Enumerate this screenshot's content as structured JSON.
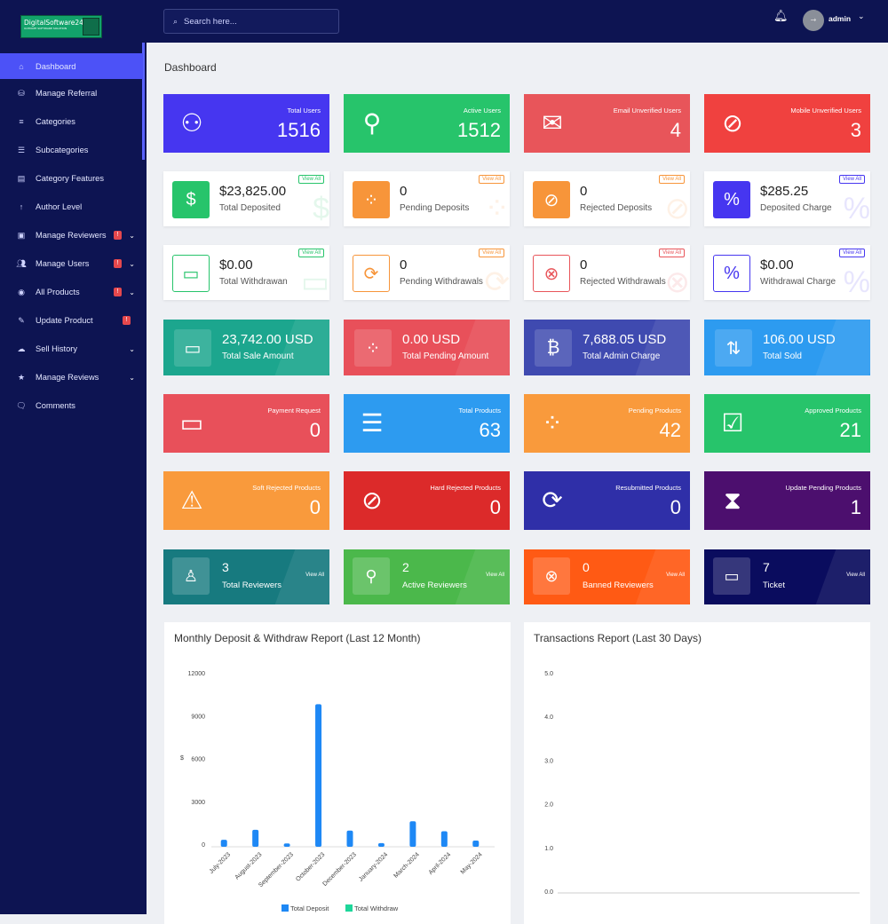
{
  "brand": {
    "name": "DigitalSoftware24",
    "tagline": "ULTIMATE SOFTWARE SOLUTION"
  },
  "search": {
    "placeholder": "Search here..."
  },
  "user": {
    "name": "admin"
  },
  "page_title": "Dashboard",
  "sidebar": {
    "items": [
      {
        "label": "Dashboard",
        "icon": "home-icon",
        "active": true
      },
      {
        "label": "Manage Referral",
        "icon": "referral-icon"
      },
      {
        "label": "Categories",
        "icon": "menu-icon"
      },
      {
        "label": "Subcategories",
        "icon": "list-icon"
      },
      {
        "label": "Category Features",
        "icon": "feature-icon"
      },
      {
        "label": "Author Level",
        "icon": "up-arrow-icon"
      },
      {
        "label": "Manage Reviewers",
        "icon": "briefcase-icon",
        "badge": "!",
        "dropdown": true
      },
      {
        "label": "Manage Users",
        "icon": "users-icon",
        "badge": "!",
        "dropdown": true
      },
      {
        "label": "All Products",
        "icon": "product-icon",
        "badge": "!",
        "dropdown": true
      },
      {
        "label": "Update Product",
        "icon": "edit-icon",
        "badge": "!"
      },
      {
        "label": "Sell History",
        "icon": "cloud-icon",
        "dropdown": true
      },
      {
        "label": "Manage Reviews",
        "icon": "star-icon",
        "dropdown": true
      },
      {
        "label": "Comments",
        "icon": "comments-icon"
      }
    ]
  },
  "row1": [
    {
      "label": "Total Users",
      "value": "1516",
      "icon": "users-group-icon",
      "color": "#4636f0"
    },
    {
      "label": "Active Users",
      "value": "1512",
      "icon": "user-check-icon",
      "color": "#27c46b"
    },
    {
      "label": "Email Unverified Users",
      "value": "4",
      "icon": "envelope-icon",
      "color": "#e8555a"
    },
    {
      "label": "Mobile Unverified Users",
      "value": "3",
      "icon": "no-comment-icon",
      "color": "#f0413f"
    }
  ],
  "row2": [
    {
      "value": "$23,825.00",
      "label": "Total Deposited",
      "link": "View All",
      "icon": "hand-dollar-icon",
      "color": "#27c46b"
    },
    {
      "value": "0",
      "label": "Pending Deposits",
      "link": "View All",
      "icon": "spinner-icon",
      "color": "#f7953a"
    },
    {
      "value": "0",
      "label": "Rejected Deposits",
      "link": "View All",
      "icon": "ban-icon",
      "color": "#f7953a"
    },
    {
      "value": "$285.25",
      "label": "Deposited Charge",
      "link": "View All",
      "icon": "percent-icon",
      "color": "#4636f0"
    }
  ],
  "row3": [
    {
      "value": "$0.00",
      "label": "Total Withdrawan",
      "link": "View All",
      "icon": "card-icon",
      "color": "#27c46b"
    },
    {
      "value": "0",
      "label": "Pending Withdrawals",
      "link": "View All",
      "icon": "sync-icon",
      "color": "#f7953a"
    },
    {
      "value": "0",
      "label": "Rejected Withdrawals",
      "link": "View All",
      "icon": "times-circle-icon",
      "color": "#e8555a"
    },
    {
      "value": "$0.00",
      "label": "Withdrawal Charge",
      "link": "View All",
      "icon": "percent-icon",
      "color": "#4636f0"
    }
  ],
  "row4": [
    {
      "value": "23,742.00 USD",
      "label": "Total Sale Amount",
      "icon": "money-bill-icon",
      "color": "#1ca68e"
    },
    {
      "value": "0.00 USD",
      "label": "Total Pending Amount",
      "icon": "spinner-icon",
      "color": "#e8505a"
    },
    {
      "value": "7,688.05 USD",
      "label": "Total Admin Charge",
      "icon": "invoice-dollar-icon",
      "color": "#3f4ab0"
    },
    {
      "value": "106.00 USD",
      "label": "Total Sold",
      "icon": "sort-arrows-icon",
      "color": "#2d9bf0"
    }
  ],
  "row5": [
    {
      "label": "Payment Request",
      "value": "0",
      "icon": "money-bill-icon",
      "color": "#e8505a"
    },
    {
      "label": "Total Products",
      "value": "63",
      "icon": "list-ul-icon",
      "color": "#2d9bf0"
    },
    {
      "label": "Pending Products",
      "value": "42",
      "icon": "spinner-icon",
      "color": "#f99a3c"
    },
    {
      "label": "Approved Products",
      "value": "21",
      "icon": "check-square-icon",
      "color": "#27c46b"
    }
  ],
  "row6": [
    {
      "label": "Soft Rejected Products",
      "value": "0",
      "icon": "warning-icon",
      "color": "#f99a3c"
    },
    {
      "label": "Hard Rejected Products",
      "value": "0",
      "icon": "ban-icon",
      "color": "#dc2a2a"
    },
    {
      "label": "Resubmitted Products",
      "value": "0",
      "icon": "sync-icon",
      "color": "#2f2fa8"
    },
    {
      "label": "Update Pending Products",
      "value": "1",
      "icon": "hourglass-icon",
      "color": "#4c0f6e"
    }
  ],
  "row7": [
    {
      "value": "3",
      "label": "Total Reviewers",
      "link": "View All",
      "icon": "user-icon",
      "color": "#177a7f"
    },
    {
      "value": "2",
      "label": "Active Reviewers",
      "link": "View All",
      "icon": "user-check-icon",
      "color": "#4bb84b"
    },
    {
      "value": "0",
      "label": "Banned Reviewers",
      "link": "View All",
      "icon": "user-times-icon",
      "color": "#ff5a14"
    },
    {
      "value": "7",
      "label": "Ticket",
      "link": "View All",
      "icon": "ticket-icon",
      "color": "#0a0c5e"
    }
  ],
  "panels": {
    "deposit_title": "Monthly Deposit & Withdraw Report (Last 12 Month)",
    "transactions_title": "Transactions Report (Last 30 Days)"
  },
  "chart_data": [
    {
      "type": "bar",
      "title": "Monthly Deposit & Withdraw Report (Last 12 Month)",
      "categories": [
        "July-2023",
        "August-2023",
        "September-2023",
        "October-2023",
        "December-2023",
        "January-2024",
        "March-2024",
        "April-2024",
        "May-2024"
      ],
      "series": [
        {
          "name": "Total Deposit",
          "color": "#1e88f5",
          "values": [
            300,
            1000,
            50,
            9800,
            950,
            70,
            1600,
            900,
            250
          ]
        },
        {
          "name": "Total Withdraw",
          "color": "#1ed69a",
          "values": [
            0,
            0,
            0,
            0,
            0,
            0,
            0,
            0,
            0
          ]
        }
      ],
      "ylabel": "$",
      "ylim": [
        0,
        12000
      ],
      "yticks": [
        "12000",
        "9000",
        "6000",
        "3000",
        "0"
      ],
      "legend": "bottom"
    },
    {
      "type": "line",
      "title": "Transactions Report (Last 30 Days)",
      "ylim": [
        0,
        5
      ],
      "yticks": [
        "5.0",
        "4.0",
        "3.0",
        "2.0",
        "1.0",
        "0.0"
      ],
      "series": []
    }
  ]
}
